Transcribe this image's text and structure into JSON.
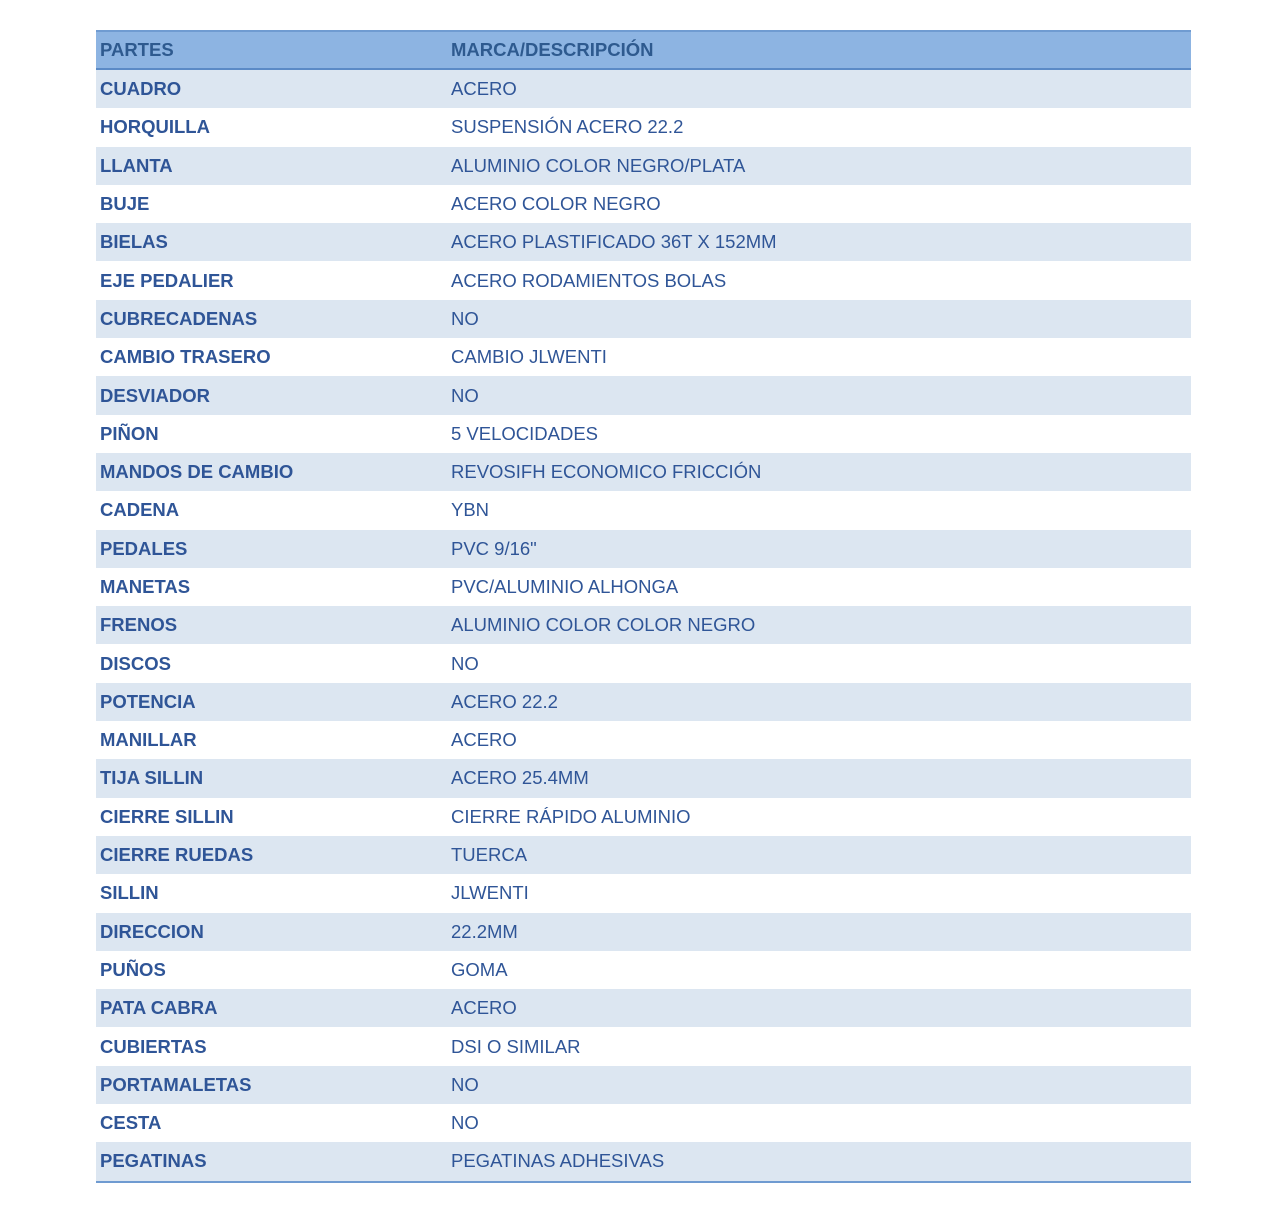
{
  "header": {
    "col1": "PARTES",
    "col2": "MARCA/DESCRIPCIÓN"
  },
  "rows": [
    {
      "part": "CUADRO",
      "desc": "ACERO"
    },
    {
      "part": "HORQUILLA",
      "desc": "SUSPENSIÓN ACERO 22.2"
    },
    {
      "part": "LLANTA",
      "desc": "ALUMINIO COLOR NEGRO/PLATA"
    },
    {
      "part": "BUJE",
      "desc": "ACERO COLOR NEGRO"
    },
    {
      "part": "BIELAS",
      "desc": "ACERO PLASTIFICADO 36T X 152MM"
    },
    {
      "part": "EJE PEDALIER",
      "desc": "ACERO RODAMIENTOS BOLAS"
    },
    {
      "part": "CUBRECADENAS",
      "desc": "NO"
    },
    {
      "part": "CAMBIO TRASERO",
      "desc": "CAMBIO JLWENTI"
    },
    {
      "part": "DESVIADOR",
      "desc": "NO"
    },
    {
      "part": "PIÑON",
      "desc": "5 VELOCIDADES"
    },
    {
      "part": "MANDOS DE CAMBIO",
      "desc": "REVOSIFH ECONOMICO FRICCIÓN"
    },
    {
      "part": "CADENA",
      "desc": "YBN"
    },
    {
      "part": "PEDALES",
      "desc": "PVC 9/16\""
    },
    {
      "part": "MANETAS",
      "desc": "PVC/ALUMINIO ALHONGA"
    },
    {
      "part": "FRENOS",
      "desc": "ALUMINIO COLOR COLOR NEGRO"
    },
    {
      "part": "DISCOS",
      "desc": "NO"
    },
    {
      "part": "POTENCIA",
      "desc": "ACERO 22.2"
    },
    {
      "part": "MANILLAR",
      "desc": "ACERO"
    },
    {
      "part": "TIJA SILLIN",
      "desc": "ACERO 25.4MM"
    },
    {
      "part": "CIERRE SILLIN",
      "desc": "CIERRE RÁPIDO ALUMINIO"
    },
    {
      "part": "CIERRE RUEDAS",
      "desc": "TUERCA"
    },
    {
      "part": "SILLIN",
      "desc": "JLWENTI"
    },
    {
      "part": "DIRECCION",
      "desc": "22.2MM"
    },
    {
      "part": "PUÑOS",
      "desc": "GOMA"
    },
    {
      "part": "PATA CABRA",
      "desc": "ACERO"
    },
    {
      "part": "CUBIERTAS",
      "desc": "DSI O SIMILAR"
    },
    {
      "part": "PORTAMALETAS",
      "desc": "NO"
    },
    {
      "part": "CESTA",
      "desc": "NO"
    },
    {
      "part": "PEGATINAS",
      "desc": "PEGATINAS ADHESIVAS"
    }
  ]
}
